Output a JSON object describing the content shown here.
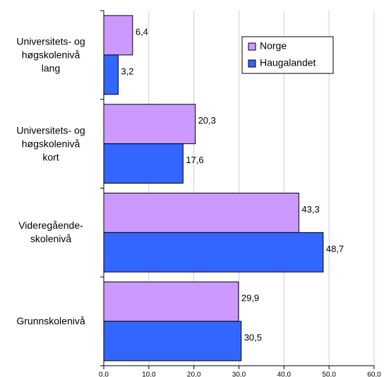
{
  "chart_data": {
    "type": "hbar",
    "categories": [
      "Universitets- og\nhøgskolenivå\nlang",
      "Universitets- og\nhøgskolenivå\nkort",
      "Videregående-\nskolenivå",
      "Grunnskolenivå"
    ],
    "series": [
      {
        "name": "Norge",
        "color": "#cc99ff",
        "values": [
          6.4,
          20.3,
          43.3,
          29.9
        ],
        "value_labels": [
          "6,4",
          "20,3",
          "43,3",
          "29,9"
        ]
      },
      {
        "name": "Haugalandet",
        "color": "#3366ff",
        "values": [
          3.2,
          17.6,
          48.7,
          30.5
        ],
        "value_labels": [
          "3,2",
          "17,6",
          "48,7",
          "30,5"
        ]
      }
    ],
    "xlim": [
      0,
      60
    ],
    "xticks": [
      {
        "value": 0,
        "label": "0,0"
      },
      {
        "value": 10,
        "label": "10,0"
      },
      {
        "value": 20,
        "label": "20,0"
      },
      {
        "value": 30,
        "label": "30,0"
      },
      {
        "value": 40,
        "label": "40,0"
      },
      {
        "value": 50,
        "label": "50,0"
      },
      {
        "value": 60,
        "label": "60,0"
      }
    ],
    "grid": true,
    "legend": "upper right"
  }
}
